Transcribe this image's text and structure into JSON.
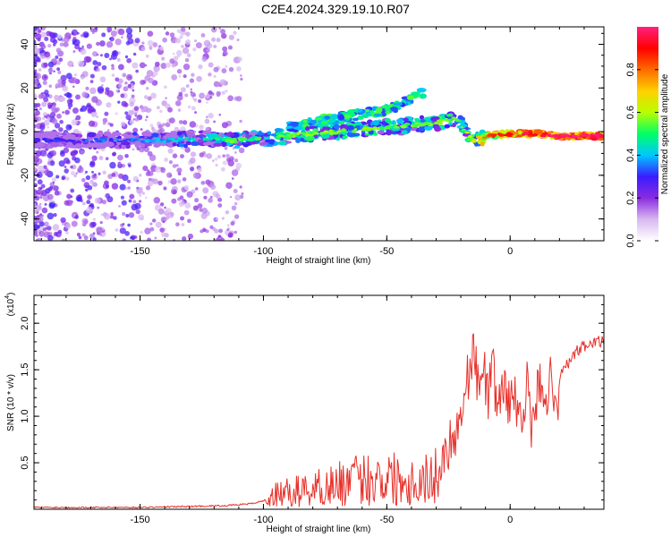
{
  "title": "C2E4.2024.329.19.10.R07",
  "chart_data": [
    {
      "type": "heatmap",
      "xlabel": "Height of straight line (km)",
      "ylabel": "Frequency (Hz)",
      "xlim": [
        -193,
        38
      ],
      "ylim": [
        -50,
        48
      ],
      "x_ticks": [
        -150,
        -100,
        -50,
        0
      ],
      "y_ticks": [
        -40,
        -20,
        0,
        20,
        40
      ],
      "colorbar": {
        "label": "Normalized spectral amplitude",
        "range": [
          0,
          1
        ],
        "ticks": [
          0.0,
          0.2,
          0.4,
          0.6,
          0.8
        ],
        "tick_labels": [
          "0.0",
          "0.2",
          "0.4",
          "0.6",
          "0.8"
        ],
        "colors": [
          "#ffffff",
          "#d8b8f0",
          "#8a2be2",
          "#3a1cff",
          "#00c8ff",
          "#00ff66",
          "#b8ff00",
          "#ffd000",
          "#ff6a00",
          "#ff0000",
          "#ff2080"
        ]
      },
      "ridge": {
        "x": [
          -193,
          -160,
          -140,
          -125,
          -112,
          -100,
          -90,
          -80,
          -70,
          -60,
          -50,
          -40,
          -30,
          -22,
          -15,
          -10,
          0,
          10,
          20,
          38
        ],
        "y": [
          -4,
          -4,
          -4,
          -3,
          -4,
          -3,
          -2,
          -1,
          0,
          1,
          2,
          3,
          4,
          6,
          -4,
          -2,
          -1,
          -1,
          -2,
          -2
        ],
        "amplitude": [
          0.25,
          0.3,
          0.35,
          0.4,
          0.5,
          0.45,
          0.5,
          0.55,
          0.5,
          0.55,
          0.5,
          0.5,
          0.55,
          0.5,
          0.55,
          0.8,
          0.9,
          0.9,
          0.95,
          0.95
        ]
      },
      "secondary_branch": {
        "x": [
          -90,
          -80,
          -70,
          -60,
          -50,
          -45,
          -40,
          -35
        ],
        "y": [
          2,
          4,
          6,
          8,
          10,
          12,
          15,
          18
        ]
      }
    },
    {
      "type": "line",
      "xlabel": "Height of straight line (km)",
      "ylabel": "SNR (10 * v/v)",
      "scale_label": "(x10",
      "scale_exponent": "4",
      "xlim": [
        -193,
        38
      ],
      "ylim": [
        0,
        2.3
      ],
      "x_ticks": [
        -150,
        -100,
        -50,
        0
      ],
      "y_ticks": [
        0.5,
        1.0,
        1.5,
        2.0
      ],
      "y_tick_labels": [
        "0.5",
        "1.0",
        "1.5",
        "2.0"
      ],
      "line_color": "#e8302a",
      "series": [
        {
          "x": [
            -193,
            -170,
            -150,
            -130,
            -115,
            -105,
            -100,
            -95,
            -90,
            -85,
            -80,
            -75,
            -70,
            -65,
            -60,
            -55,
            -50,
            -45,
            -40,
            -35,
            -30,
            -27,
            -25,
            -22,
            -20,
            -18,
            -15,
            -13,
            -11,
            -9,
            -7,
            -5,
            -3,
            -1,
            1,
            3,
            5,
            7,
            9,
            11,
            13,
            15,
            17,
            19,
            21,
            23,
            25,
            27,
            30,
            33,
            36,
            38
          ],
          "y": [
            0.02,
            0.02,
            0.02,
            0.03,
            0.04,
            0.06,
            0.09,
            0.15,
            0.18,
            0.2,
            0.22,
            0.25,
            0.27,
            0.3,
            0.32,
            0.34,
            0.35,
            0.33,
            0.3,
            0.32,
            0.35,
            0.55,
            0.7,
            0.85,
            1.0,
            1.3,
            1.75,
            1.3,
            1.6,
            1.2,
            1.5,
            1.1,
            1.35,
            1.15,
            1.3,
            1.0,
            1.1,
            1.35,
            0.75,
            1.25,
            1.4,
            1.2,
            1.45,
            1.1,
            1.5,
            1.55,
            1.62,
            1.7,
            1.75,
            1.78,
            1.8,
            1.82
          ]
        }
      ]
    }
  ]
}
